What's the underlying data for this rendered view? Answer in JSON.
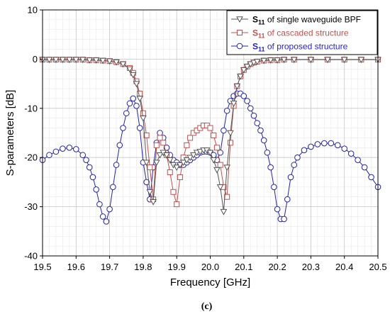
{
  "chart_data": {
    "type": "line",
    "xlabel": "Frequency [GHz]",
    "ylabel": "S-parameters [dB]",
    "xlim": [
      19.5,
      20.5
    ],
    "ylim": [
      -40,
      10
    ],
    "x_ticks": [
      "19.5",
      "19.6",
      "19.7",
      "19.8",
      "19.9",
      "20.0",
      "20.1",
      "20.2",
      "20.3",
      "20.4",
      "20.5"
    ],
    "y_ticks": [
      "-40",
      "-30",
      "-20",
      "-10",
      "0",
      "10"
    ],
    "grid": true,
    "legend_position": "top-right",
    "caption": "(c)",
    "series": [
      {
        "name": "S11 of single waveguide BPF",
        "symbol": "S",
        "subscript": "11",
        "suffix": " of single waveguide BPF",
        "color": "#555555",
        "label_color": "#000000",
        "marker": "triangle-down",
        "x": [
          19.5,
          19.52,
          19.54,
          19.56,
          19.58,
          19.6,
          19.62,
          19.64,
          19.66,
          19.68,
          19.7,
          19.72,
          19.74,
          19.76,
          19.77,
          19.78,
          19.79,
          19.8,
          19.81,
          19.82,
          19.83,
          19.84,
          19.85,
          19.86,
          19.87,
          19.88,
          19.89,
          19.9,
          19.91,
          19.92,
          19.93,
          19.94,
          19.95,
          19.96,
          19.97,
          19.98,
          19.99,
          20.0,
          20.01,
          20.02,
          20.03,
          20.04,
          20.05,
          20.06,
          20.07,
          20.08,
          20.09,
          20.1,
          20.11,
          20.12,
          20.13,
          20.14,
          20.16,
          20.18,
          20.2,
          20.22,
          20.25,
          20.3,
          20.35,
          20.4,
          20.45,
          20.5
        ],
        "y": [
          -0.1,
          -0.1,
          -0.1,
          -0.1,
          -0.1,
          -0.1,
          -0.1,
          -0.2,
          -0.2,
          -0.3,
          -0.4,
          -0.6,
          -1.0,
          -2.0,
          -3.2,
          -5.0,
          -8.0,
          -12.0,
          -21.0,
          -27.0,
          -29.0,
          -21.0,
          -19.5,
          -19.0,
          -19.5,
          -20.5,
          -21.5,
          -22.0,
          -21.5,
          -21.0,
          -20.5,
          -20.0,
          -19.5,
          -19.0,
          -18.8,
          -18.5,
          -18.5,
          -19.0,
          -20.5,
          -22.5,
          -26.0,
          -31.0,
          -22.0,
          -15.0,
          -9.0,
          -5.5,
          -3.5,
          -2.2,
          -1.5,
          -1.0,
          -0.7,
          -0.5,
          -0.3,
          -0.2,
          -0.2,
          -0.1,
          -0.1,
          -0.1,
          -0.1,
          -0.1,
          -0.1,
          -0.1
        ]
      },
      {
        "name": "S11 of cascaded structure",
        "symbol": "S",
        "subscript": "11",
        "suffix": " of cascaded structure",
        "color": "#c0504d",
        "label_color": "#c0504d",
        "marker": "square",
        "x": [
          19.5,
          19.52,
          19.54,
          19.56,
          19.58,
          19.6,
          19.62,
          19.64,
          19.66,
          19.68,
          19.7,
          19.72,
          19.74,
          19.76,
          19.77,
          19.78,
          19.79,
          19.8,
          19.81,
          19.82,
          19.83,
          19.84,
          19.85,
          19.86,
          19.87,
          19.88,
          19.89,
          19.9,
          19.91,
          19.92,
          19.93,
          19.94,
          19.95,
          19.96,
          19.97,
          19.98,
          19.99,
          20.0,
          20.01,
          20.02,
          20.03,
          20.04,
          20.05,
          20.06,
          20.07,
          20.08,
          20.09,
          20.1,
          20.11,
          20.12,
          20.13,
          20.14,
          20.16,
          20.18,
          20.2,
          20.22,
          20.25,
          20.3,
          20.35,
          20.4,
          20.45,
          20.5
        ],
        "y": [
          -0.1,
          -0.1,
          -0.1,
          -0.1,
          -0.1,
          -0.1,
          -0.1,
          -0.2,
          -0.2,
          -0.3,
          -0.4,
          -0.6,
          -1.0,
          -1.8,
          -2.8,
          -4.5,
          -7.0,
          -11.0,
          -15.5,
          -22.0,
          -28.5,
          -17.5,
          -16.0,
          -17.0,
          -19.5,
          -23.0,
          -27.0,
          -29.5,
          -24.0,
          -20.0,
          -17.5,
          -16.0,
          -15.0,
          -14.5,
          -14.0,
          -13.5,
          -13.5,
          -14.0,
          -15.5,
          -18.0,
          -21.5,
          -26.0,
          -28.0,
          -17.0,
          -9.5,
          -5.5,
          -3.5,
          -2.2,
          -1.5,
          -1.0,
          -0.7,
          -0.5,
          -0.3,
          -0.2,
          -0.2,
          -0.1,
          -0.1,
          -0.1,
          -0.1,
          -0.1,
          -0.1,
          -0.1
        ]
      },
      {
        "name": "S11 of proposed structure",
        "symbol": "S",
        "subscript": "11",
        "suffix": " of proposed structure",
        "color": "#2222aa",
        "label_color": "#2222cc",
        "marker": "circle",
        "x": [
          19.5,
          19.52,
          19.54,
          19.56,
          19.58,
          19.6,
          19.62,
          19.63,
          19.64,
          19.65,
          19.66,
          19.67,
          19.68,
          19.69,
          19.7,
          19.71,
          19.72,
          19.73,
          19.74,
          19.75,
          19.76,
          19.77,
          19.78,
          19.79,
          19.8,
          19.81,
          19.82,
          19.83,
          19.84,
          19.85,
          19.86,
          19.87,
          19.88,
          19.89,
          19.9,
          19.91,
          19.92,
          19.93,
          19.94,
          19.95,
          19.96,
          19.97,
          19.98,
          19.99,
          20.0,
          20.01,
          20.02,
          20.03,
          20.04,
          20.05,
          20.06,
          20.07,
          20.08,
          20.09,
          20.1,
          20.11,
          20.12,
          20.13,
          20.14,
          20.15,
          20.16,
          20.17,
          20.18,
          20.19,
          20.2,
          20.21,
          20.22,
          20.23,
          20.24,
          20.25,
          20.26,
          20.28,
          20.3,
          20.32,
          20.34,
          20.36,
          20.38,
          20.4,
          20.42,
          20.44,
          20.46,
          20.48,
          20.5
        ],
        "y": [
          -20.5,
          -19.5,
          -18.8,
          -18.2,
          -18.0,
          -18.3,
          -19.5,
          -20.5,
          -22.0,
          -24.0,
          -26.5,
          -29.5,
          -32.0,
          -33.0,
          -30.5,
          -26.0,
          -21.5,
          -17.5,
          -14.0,
          -11.0,
          -9.0,
          -8.0,
          -9.5,
          -14.0,
          -21.0,
          -25.0,
          -28.5,
          -22.0,
          -17.0,
          -15.0,
          -16.0,
          -18.0,
          -19.5,
          -20.5,
          -21.0,
          -21.5,
          -21.5,
          -21.0,
          -20.5,
          -20.0,
          -19.5,
          -19.0,
          -18.8,
          -18.8,
          -19.0,
          -19.5,
          -20.5,
          -19.0,
          -14.5,
          -10.5,
          -8.5,
          -7.5,
          -7.0,
          -7.0,
          -7.5,
          -8.5,
          -10.0,
          -11.5,
          -13.0,
          -14.5,
          -16.5,
          -19.0,
          -22.0,
          -26.0,
          -30.5,
          -32.5,
          -32.5,
          -28.5,
          -24.0,
          -21.5,
          -20.0,
          -18.5,
          -17.8,
          -17.3,
          -17.1,
          -17.1,
          -17.5,
          -18.2,
          -19.2,
          -20.5,
          -22.0,
          -24.0,
          -26.0
        ]
      }
    ]
  }
}
